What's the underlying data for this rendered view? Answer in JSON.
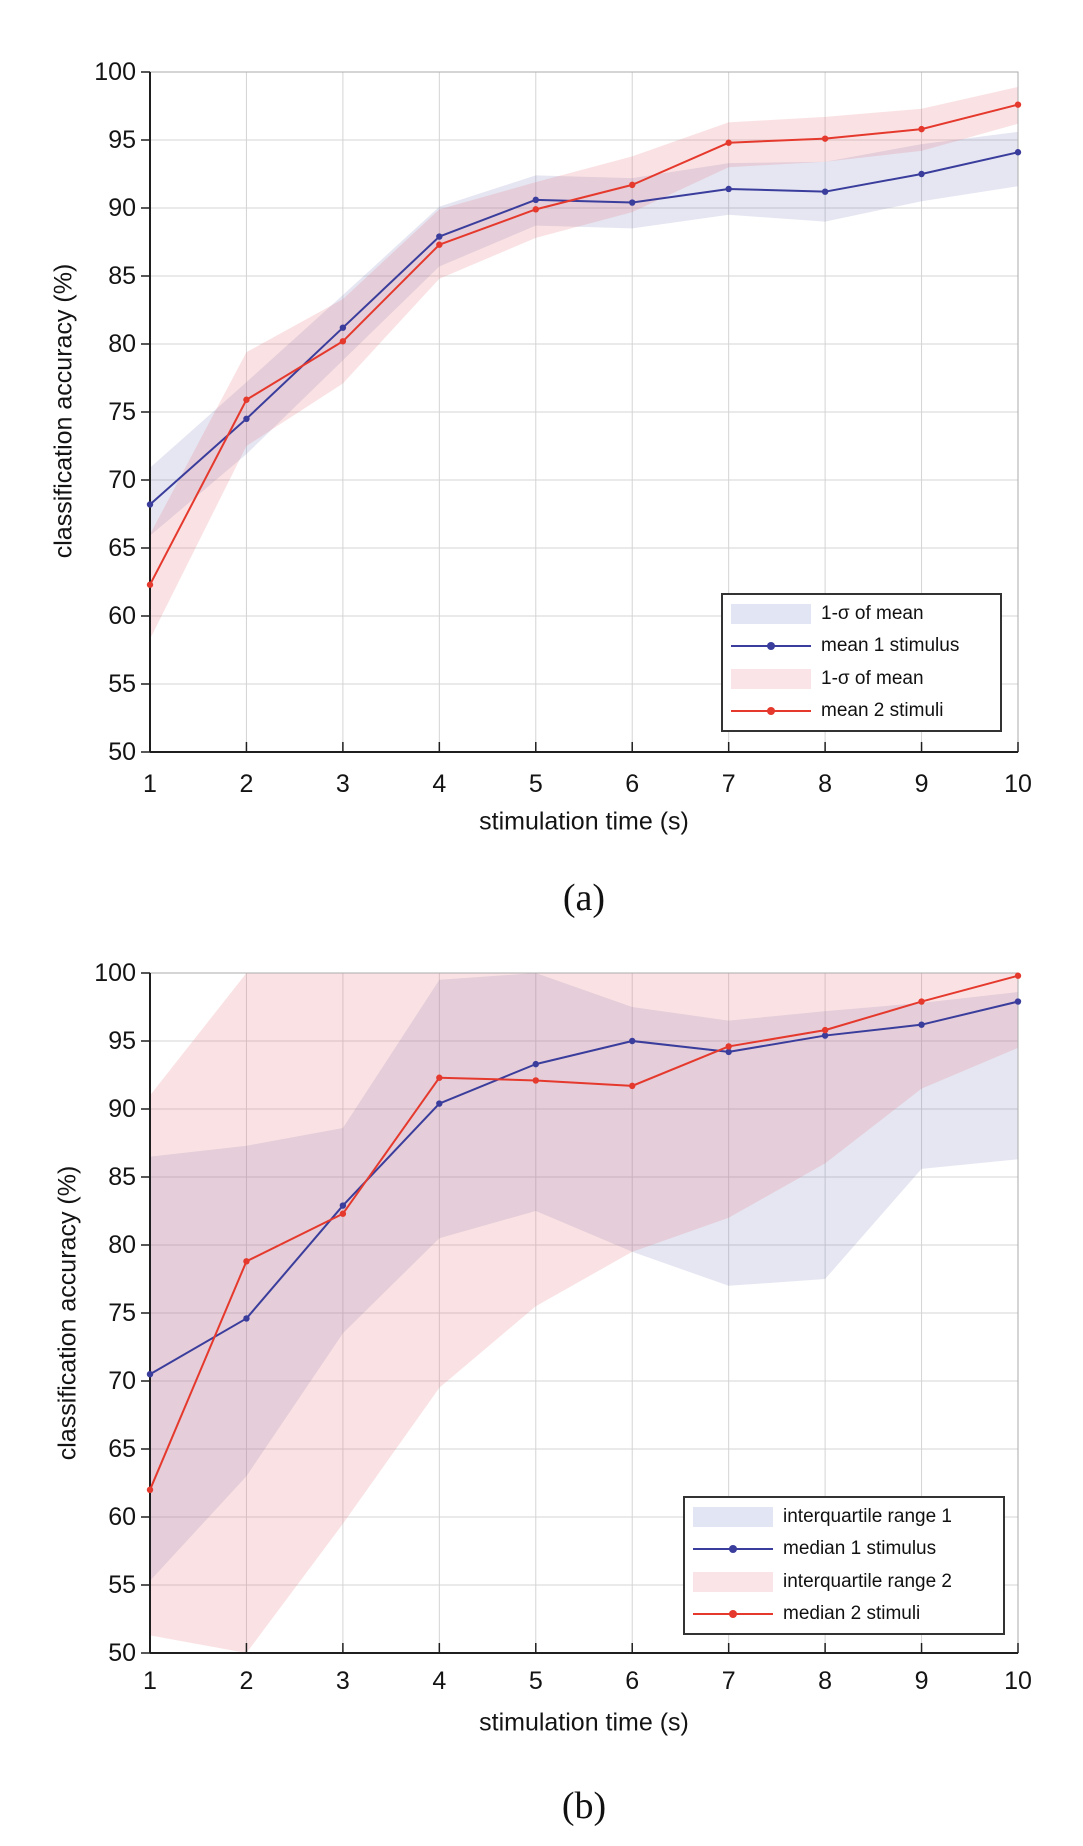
{
  "figure": {
    "background": "#ffffff",
    "accent_blue": "#3a3d9c",
    "accent_red": "#e5392d",
    "grid_color": "#d4d4d4",
    "box_color": "#ababab",
    "axis_color": "#1f1f1f"
  },
  "chart_data": [
    {
      "type": "line",
      "panel": "a",
      "caption": "(a)",
      "xlabel": "stimulation time (s)",
      "ylabel": "classification accuracy (%)",
      "xlim": [
        1,
        10
      ],
      "ylim": [
        50,
        100
      ],
      "x_ticks": [
        1,
        2,
        3,
        4,
        5,
        6,
        7,
        8,
        9,
        10
      ],
      "y_ticks": [
        50,
        55,
        60,
        65,
        70,
        75,
        80,
        85,
        90,
        95,
        100
      ],
      "grid": true,
      "legend_position": "lower right",
      "x": [
        1,
        2,
        3,
        4,
        5,
        6,
        7,
        8,
        9,
        10
      ],
      "series": [
        {
          "name": "mean 1 stimulus",
          "color": "#3a3d9c",
          "band_name": "1-σ of mean",
          "band_fill": "rgba(98,108,178,0.17)",
          "values": [
            68.2,
            74.5,
            81.2,
            87.9,
            90.6,
            90.4,
            91.4,
            91.2,
            92.5,
            94.1
          ],
          "band_upper": [
            70.9,
            77.2,
            83.6,
            90.1,
            92.4,
            92.2,
            93.3,
            93.4,
            94.7,
            95.6
          ],
          "band_lower": [
            65.9,
            71.9,
            78.8,
            85.7,
            88.7,
            88.5,
            89.5,
            89.0,
            90.5,
            91.6
          ]
        },
        {
          "name": "mean 2 stimuli",
          "color": "#e5392d",
          "band_name": "1-σ of mean",
          "band_fill": "rgba(232,116,126,0.21)",
          "values": [
            62.3,
            75.9,
            80.2,
            87.3,
            89.9,
            91.7,
            94.8,
            95.1,
            95.8,
            97.6
          ],
          "band_upper": [
            66.0,
            79.4,
            83.3,
            89.9,
            91.9,
            93.8,
            96.3,
            96.7,
            97.3,
            98.9
          ],
          "band_lower": [
            58.3,
            72.5,
            77.1,
            84.8,
            87.8,
            89.7,
            93.0,
            93.4,
            94.2,
            96.2
          ]
        }
      ],
      "legend": [
        {
          "kind": "band",
          "label": "1-σ of mean",
          "color": "#e2e5f3"
        },
        {
          "kind": "line",
          "label": "mean 1 stimulus",
          "color": "#3a3d9c"
        },
        {
          "kind": "band",
          "label": "1-σ of mean",
          "color": "#fbe4e7"
        },
        {
          "kind": "line",
          "label": "mean 2 stimuli",
          "color": "#e5392d"
        }
      ]
    },
    {
      "type": "line",
      "panel": "b",
      "caption": "(b)",
      "xlabel": "stimulation time (s)",
      "ylabel": "classification accuracy (%)",
      "xlim": [
        1,
        10
      ],
      "ylim": [
        50,
        100
      ],
      "x_ticks": [
        1,
        2,
        3,
        4,
        5,
        6,
        7,
        8,
        9,
        10
      ],
      "y_ticks": [
        50,
        55,
        60,
        65,
        70,
        75,
        80,
        85,
        90,
        95,
        100
      ],
      "grid": true,
      "legend_position": "lower right",
      "x": [
        1,
        2,
        3,
        4,
        5,
        6,
        7,
        8,
        9,
        10
      ],
      "series": [
        {
          "name": "median 1 stimulus",
          "color": "#3a3d9c",
          "band_name": "interquartile range 1",
          "band_fill": "rgba(98,108,178,0.17)",
          "values": [
            70.5,
            74.6,
            82.9,
            90.4,
            93.3,
            95.0,
            94.2,
            95.4,
            96.2,
            97.9
          ],
          "band_upper": [
            86.5,
            87.3,
            88.6,
            99.5,
            100,
            97.5,
            96.5,
            97.2,
            97.8,
            98.6
          ],
          "band_lower": [
            55.3,
            63.0,
            73.5,
            80.5,
            82.5,
            79.5,
            77.0,
            77.5,
            85.6,
            86.3
          ]
        },
        {
          "name": "median 2 stimuli",
          "color": "#e5392d",
          "band_name": "interquartile range 2",
          "band_fill": "rgba(232,116,126,0.21)",
          "values": [
            62.0,
            78.8,
            82.3,
            92.3,
            92.1,
            91.7,
            94.6,
            95.8,
            97.9,
            99.8
          ],
          "band_upper": [
            91.0,
            100,
            100,
            100,
            100,
            100,
            100,
            100,
            100,
            100
          ],
          "band_lower": [
            51.3,
            50.0,
            59.5,
            69.5,
            75.5,
            79.5,
            82.0,
            86.0,
            91.5,
            94.5
          ]
        }
      ],
      "legend": [
        {
          "kind": "band",
          "label": "interquartile range 1",
          "color": "#e2e5f3"
        },
        {
          "kind": "line",
          "label": "median 1 stimulus",
          "color": "#3a3d9c"
        },
        {
          "kind": "band",
          "label": "interquartile range 2",
          "color": "#fbe4e7"
        },
        {
          "kind": "line",
          "label": "median 2 stimuli",
          "color": "#e5392d"
        }
      ]
    }
  ]
}
